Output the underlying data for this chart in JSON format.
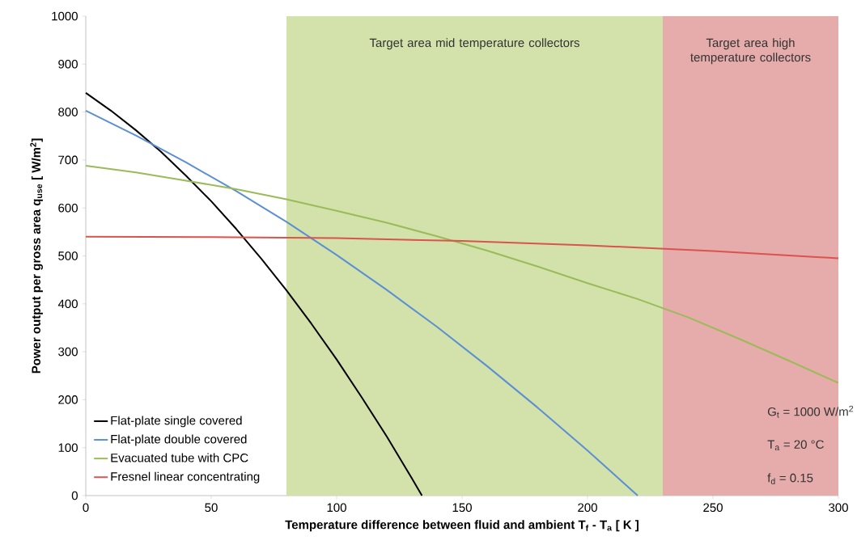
{
  "chart_data": {
    "type": "line",
    "xlabel": "Temperature difference between fluid and ambient T$_{f}$ - T$_{a}$ [ K ]",
    "ylabel": "Power output per gross area  q$_{use}$ [ W/m$^{2}$]",
    "xlim": [
      0,
      300
    ],
    "ylim": [
      0,
      1000
    ],
    "xticks": [
      0,
      50,
      100,
      150,
      200,
      250,
      300
    ],
    "yticks": [
      0,
      100,
      200,
      300,
      400,
      500,
      600,
      700,
      800,
      900,
      1000
    ],
    "grid": false,
    "legend": "bottom left",
    "marker": "none",
    "line_style": "solid",
    "series": [
      {
        "name": "Flat-plate single covered",
        "color": "#000000",
        "x": [
          0,
          10,
          20,
          30,
          40,
          50,
          60,
          70,
          80,
          90,
          100,
          110,
          120,
          130,
          134
        ],
        "values": [
          840,
          803,
          762,
          717,
          667,
          614,
          556,
          494,
          428,
          358,
          284,
          205,
          123,
          36,
          0
        ]
      },
      {
        "name": "Flat-plate double covered",
        "color": "#5b8fd4",
        "x": [
          0,
          20,
          40,
          60,
          80,
          100,
          120,
          140,
          160,
          180,
          200,
          220
        ],
        "values": [
          803,
          751,
          695,
          635,
          571,
          502,
          429,
          352,
          270,
          184,
          94,
          0
        ]
      },
      {
        "name": "Evacuated tube with CPC",
        "color": "#9bbb59",
        "x": [
          0,
          20,
          40,
          60,
          80,
          100,
          120,
          140,
          160,
          180,
          200,
          220,
          240,
          260,
          280,
          300
        ],
        "values": [
          688,
          674,
          657,
          639,
          618,
          594,
          569,
          541,
          511,
          478,
          443,
          410,
          372,
          328,
          282,
          235
        ]
      },
      {
        "name": "Fresnel linear concentrating",
        "color": "#d9534f",
        "x": [
          0,
          50,
          100,
          150,
          200,
          250,
          300
        ],
        "values": [
          540,
          539,
          537,
          531,
          522,
          510,
          495
        ]
      }
    ],
    "bands": [
      {
        "axis": "x",
        "from": 80,
        "to": 230,
        "label": "Target area mid temperature collectors",
        "color": "#d3e1ab"
      },
      {
        "axis": "x",
        "from": 230,
        "to": 300,
        "label": "Target area high temperature collectors",
        "color": "#e6abab"
      }
    ],
    "annotations": [
      "G$_{t}$ = 1000 W/m$^{2}$",
      "T$_{a}$ = 20 °C",
      "f$_{d}$ = 0.15"
    ]
  }
}
